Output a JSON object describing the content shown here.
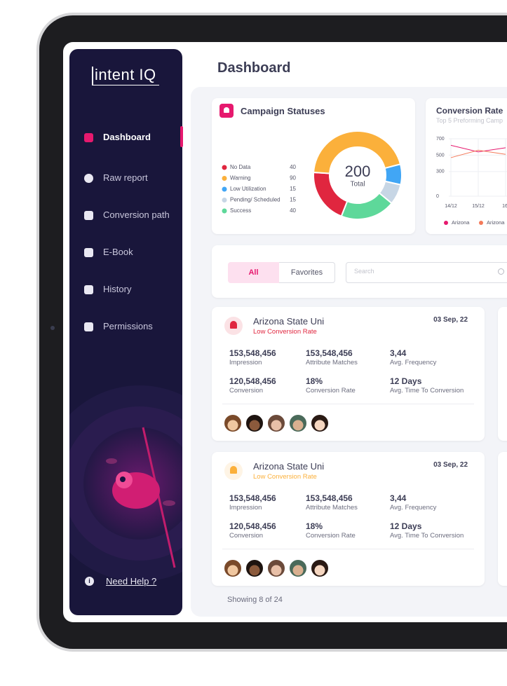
{
  "sidebar": {
    "logo": "intent IQ",
    "nav": [
      "Dashboard",
      "Raw report",
      "Conversion path",
      "E-Book",
      "History",
      "Permissions"
    ],
    "active": 0,
    "help": "Need Help ?"
  },
  "header": {
    "title": "Dashboard"
  },
  "chart_data": [
    {
      "type": "donut",
      "title": "Campaign Statuses",
      "categories": [
        "No Data",
        "Warning",
        "Low Utilization",
        "Pending/ Scheduled",
        "Success"
      ],
      "values": [
        40,
        90,
        15,
        15,
        40
      ],
      "colors": [
        "#e0263f",
        "#fbb03b",
        "#41a6f5",
        "#c7d6e5",
        "#5ed89a"
      ],
      "total": 200,
      "total_label": "Total"
    },
    {
      "type": "line",
      "title": "Conversion Rate",
      "subtitle": "Top 5 Preforming Camp",
      "categories": [
        "14/12",
        "15/12",
        "16/"
      ],
      "series": [
        {
          "name": "Arizona",
          "color": "#e6196e",
          "values": [
            620,
            540,
            590
          ]
        },
        {
          "name": "Arizona",
          "color": "#f47a5a",
          "values": [
            470,
            560,
            510
          ]
        }
      ],
      "ylim": [
        0,
        700
      ],
      "yticks": [
        0,
        300,
        500,
        700
      ],
      "grid": true
    }
  ],
  "filters": {
    "tabs": [
      "All",
      "Favorites"
    ],
    "search_placeholder": "Search"
  },
  "cards": [
    {
      "title": "Arizona State Uni",
      "status": "Low Conversion Rate",
      "date": "03 Sep, 22",
      "color": "#e0263f",
      "metrics": [
        {
          "value": "153,548,456",
          "label": "Impression"
        },
        {
          "value": "153,548,456",
          "label": "Attribute Matches"
        },
        {
          "value": "3,44",
          "label": "Avg. Frequency"
        },
        {
          "value": "120,548,456",
          "label": "Conversion"
        },
        {
          "value": "18%",
          "label": "Conversion Rate"
        },
        {
          "value": "12 Days",
          "label": "Avg. Time To Conversion"
        }
      ]
    },
    {
      "title": "Arizona State Uni",
      "status": "Low Conversion Rate",
      "date": "03 Sep, 22",
      "color": "#fbb03b",
      "metrics": [
        {
          "value": "153,548,456",
          "label": "Impression"
        },
        {
          "value": "153,548,456",
          "label": "Attribute Matches"
        },
        {
          "value": "3,44",
          "label": "Avg. Frequency"
        },
        {
          "value": "120,548,456",
          "label": "Conversion"
        },
        {
          "value": "18%",
          "label": "Conversion Rate"
        },
        {
          "value": "12 Days",
          "label": "Avg. Time To Conversion"
        }
      ]
    }
  ],
  "footer": "Showing 8 of 24"
}
